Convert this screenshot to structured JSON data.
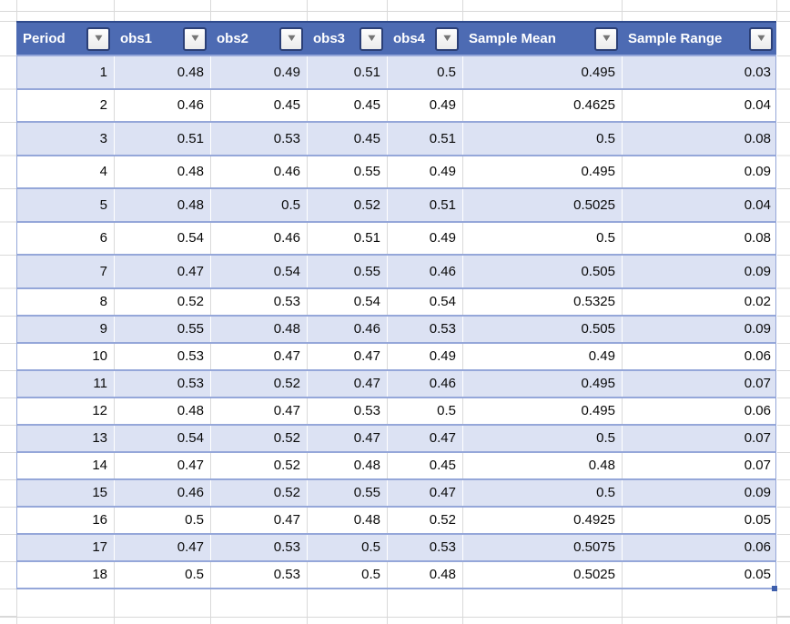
{
  "table": {
    "columns": [
      "Period",
      "obs1",
      "obs2",
      "obs3",
      "obs4",
      "Sample Mean",
      "Sample Range"
    ],
    "filter_icon": "▼",
    "rows": [
      [
        "1",
        "0.48",
        "0.49",
        "0.51",
        "0.5",
        "0.495",
        "0.03"
      ],
      [
        "2",
        "0.46",
        "0.45",
        "0.45",
        "0.49",
        "0.4625",
        "0.04"
      ],
      [
        "3",
        "0.51",
        "0.53",
        "0.45",
        "0.51",
        "0.5",
        "0.08"
      ],
      [
        "4",
        "0.48",
        "0.46",
        "0.55",
        "0.49",
        "0.495",
        "0.09"
      ],
      [
        "5",
        "0.48",
        "0.5",
        "0.52",
        "0.51",
        "0.5025",
        "0.04"
      ],
      [
        "6",
        "0.54",
        "0.46",
        "0.51",
        "0.49",
        "0.5",
        "0.08"
      ],
      [
        "7",
        "0.47",
        "0.54",
        "0.55",
        "0.46",
        "0.505",
        "0.09"
      ],
      [
        "8",
        "0.52",
        "0.53",
        "0.54",
        "0.54",
        "0.5325",
        "0.02"
      ],
      [
        "9",
        "0.55",
        "0.48",
        "0.46",
        "0.53",
        "0.505",
        "0.09"
      ],
      [
        "10",
        "0.53",
        "0.47",
        "0.47",
        "0.49",
        "0.49",
        "0.06"
      ],
      [
        "11",
        "0.53",
        "0.52",
        "0.47",
        "0.46",
        "0.495",
        "0.07"
      ],
      [
        "12",
        "0.48",
        "0.47",
        "0.53",
        "0.5",
        "0.495",
        "0.06"
      ],
      [
        "13",
        "0.54",
        "0.52",
        "0.47",
        "0.47",
        "0.5",
        "0.07"
      ],
      [
        "14",
        "0.47",
        "0.52",
        "0.48",
        "0.45",
        "0.48",
        "0.07"
      ],
      [
        "15",
        "0.46",
        "0.52",
        "0.55",
        "0.47",
        "0.5",
        "0.09"
      ],
      [
        "16",
        "0.5",
        "0.47",
        "0.48",
        "0.52",
        "0.4925",
        "0.05"
      ],
      [
        "17",
        "0.47",
        "0.53",
        "0.5",
        "0.53",
        "0.5075",
        "0.06"
      ],
      [
        "18",
        "0.5",
        "0.53",
        "0.5",
        "0.48",
        "0.5025",
        "0.05"
      ]
    ]
  },
  "colors": {
    "header_bg": "#4D6BB3",
    "header_border": "#2F4A8C",
    "band": "#DCE2F3",
    "rowline": "#95A7D9",
    "grid": "#D9D9D9",
    "btn_border": "#2B3F76",
    "tri": "#757575",
    "handle": "#3D5EAC"
  }
}
